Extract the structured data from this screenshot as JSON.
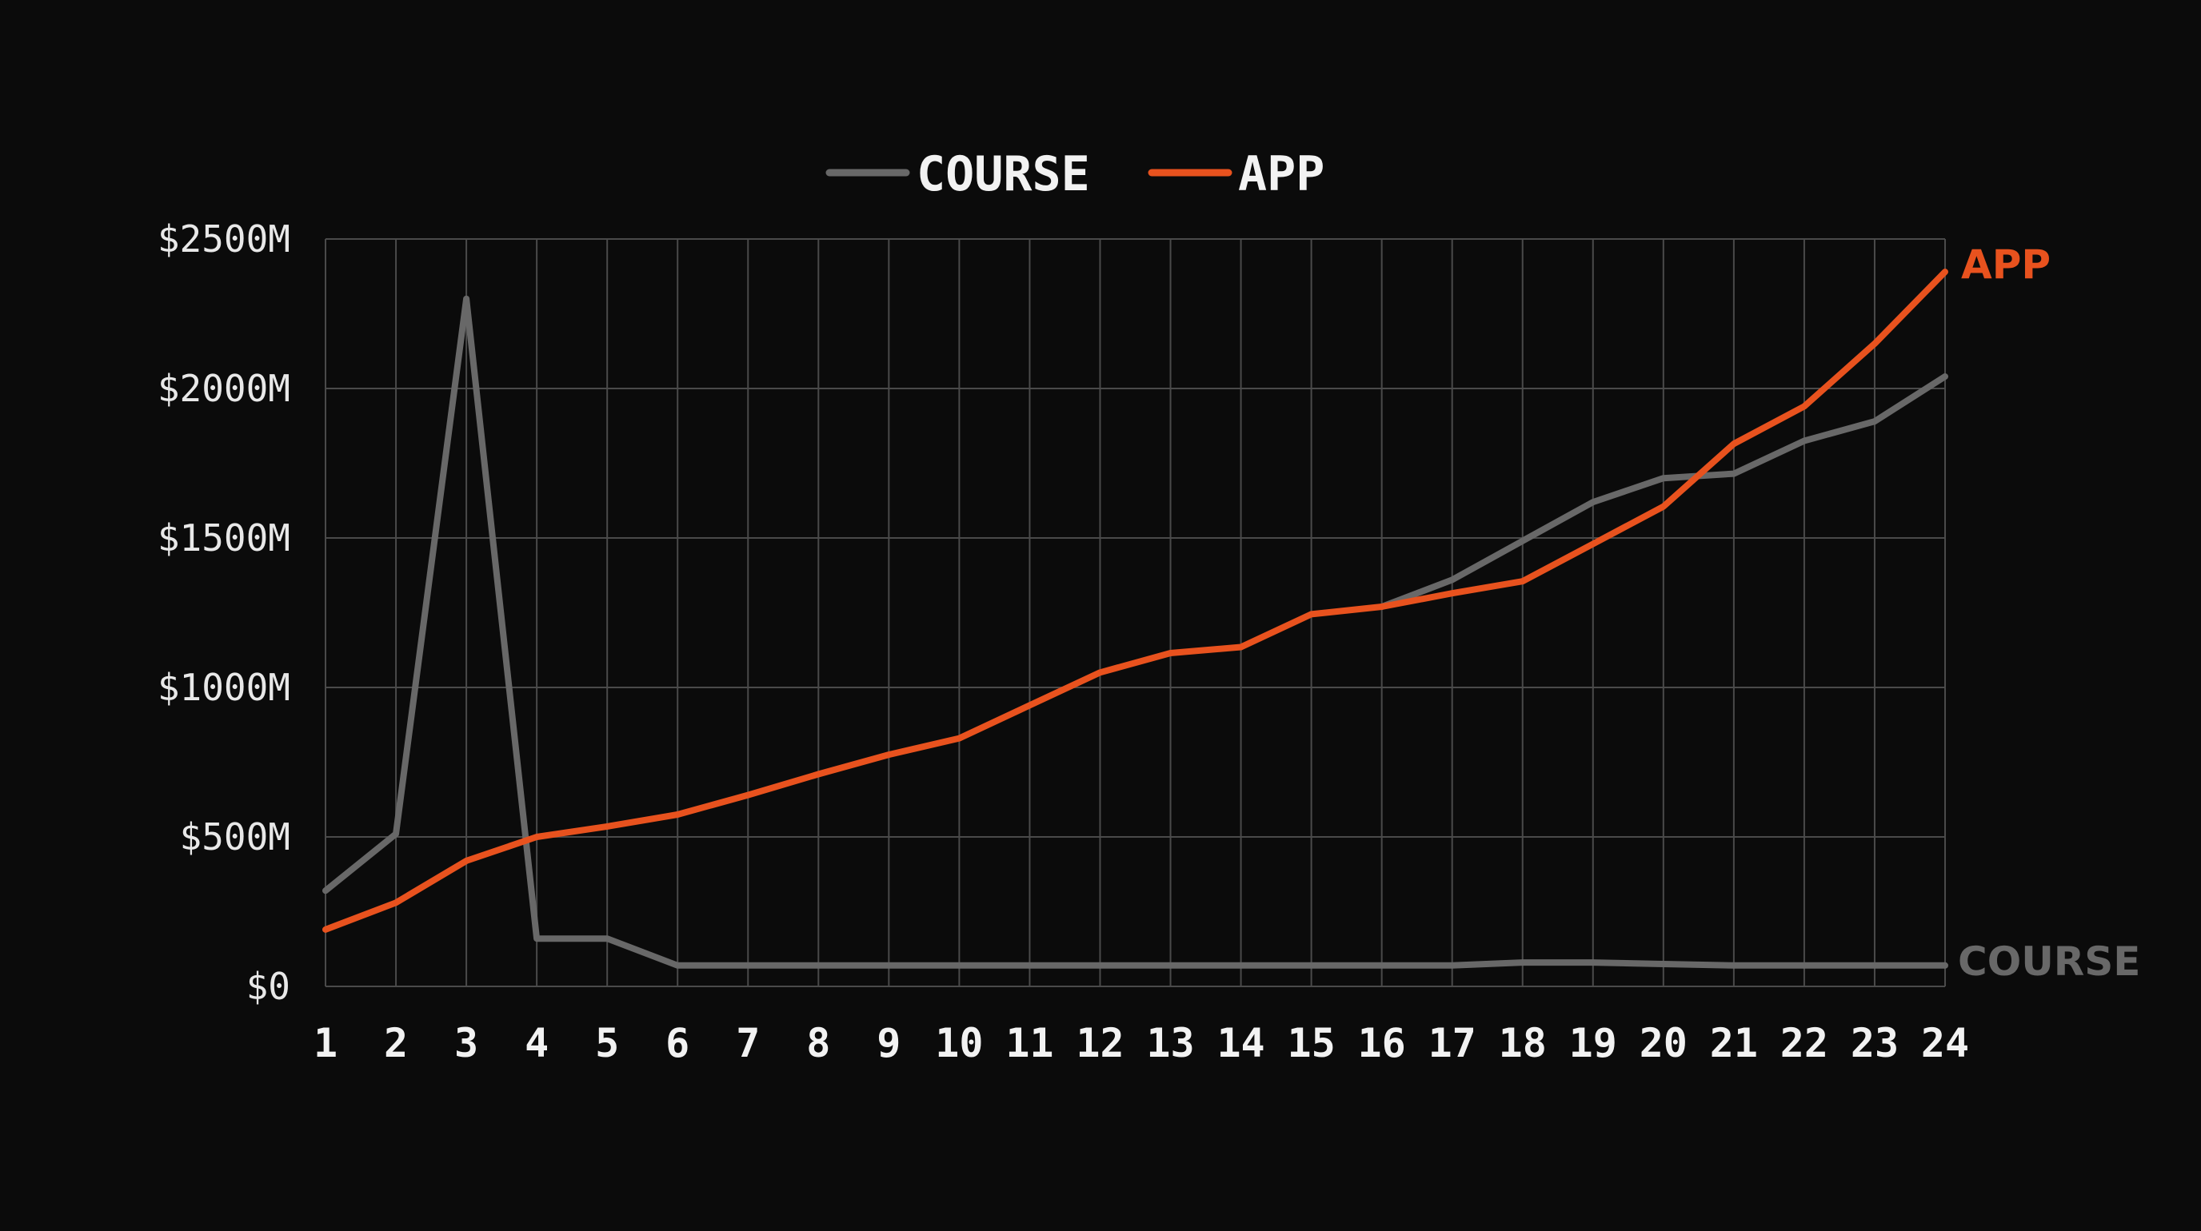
{
  "chart_data": {
    "type": "line",
    "x": [
      1,
      2,
      3,
      4,
      5,
      6,
      7,
      8,
      9,
      10,
      11,
      12,
      13,
      14,
      15,
      16,
      17,
      18,
      19,
      20,
      21,
      22,
      23,
      24
    ],
    "xtick_labels": [
      "1",
      "2",
      "3",
      "4",
      "5",
      "6",
      "7",
      "8",
      "9",
      "10",
      "11",
      "12",
      "13",
      "14",
      "15",
      "16",
      "17",
      "18",
      "19",
      "20",
      "21",
      "22",
      "23",
      "24"
    ],
    "ylim": [
      0,
      2500
    ],
    "yticks": [
      0,
      500,
      1000,
      1500,
      2000,
      2500
    ],
    "ytick_labels": [
      "$0",
      "$500M",
      "$1000M",
      "$1500M",
      "$2000M",
      "$2500M"
    ],
    "grid": true,
    "legend_position": "top-center",
    "series": [
      {
        "name": "COURSE",
        "color": "#686868",
        "end_label": "COURSE",
        "values": [
          320,
          510,
          2300,
          160,
          160,
          70,
          70,
          70,
          70,
          70,
          70,
          70,
          70,
          70,
          70,
          70,
          70,
          80,
          80,
          75,
          70,
          70,
          70,
          70
        ]
      },
      {
        "name": "APP",
        "color": "#e8521e",
        "end_label": "APP",
        "values": [
          190,
          280,
          420,
          500,
          535,
          575,
          640,
          710,
          775,
          830,
          940,
          1050,
          1115,
          1135,
          1245,
          1270,
          1315,
          1355,
          1480,
          1605,
          1815,
          1940,
          2150,
          2390
        ]
      }
    ],
    "extra_segments": [
      {
        "series": "COURSE",
        "color": "#686868",
        "x": [
          16,
          17,
          18,
          19,
          20,
          21,
          22,
          23,
          24
        ],
        "values": [
          1270,
          1360,
          1490,
          1620,
          1700,
          1715,
          1825,
          1890,
          2040
        ]
      }
    ]
  }
}
